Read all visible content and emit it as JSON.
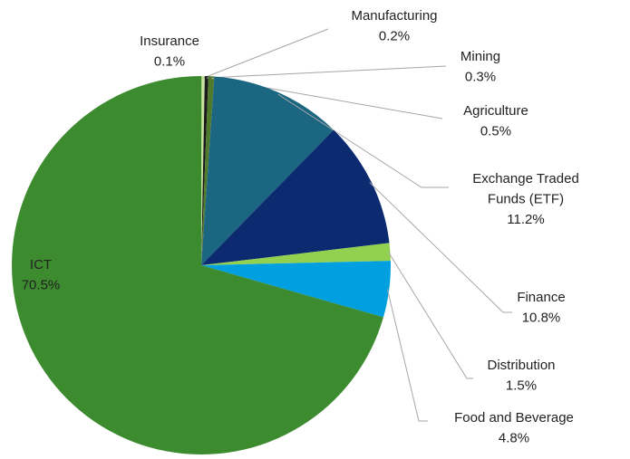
{
  "chart_data": {
    "type": "pie",
    "categories": [
      "Insurance",
      "Manufacturing",
      "Mining",
      "Agriculture",
      "Exchange Traded Funds (ETF)",
      "Finance",
      "Distribution",
      "Food and Beverage",
      "ICT"
    ],
    "values": [
      0.1,
      0.2,
      0.3,
      0.5,
      11.2,
      10.8,
      1.5,
      4.8,
      70.5
    ],
    "value_labels": [
      "0.1%",
      "0.2%",
      "0.3%",
      "0.5%",
      "11.2%",
      "10.8%",
      "1.5%",
      "4.8%",
      "70.5%"
    ],
    "colors": [
      "#a9d46f",
      "#c6e0a4",
      "#1a1a1a",
      "#4f7a2b",
      "#1b6680",
      "#0b2a6f",
      "#92d050",
      "#00a0e0",
      "#3d8b2f"
    ]
  }
}
